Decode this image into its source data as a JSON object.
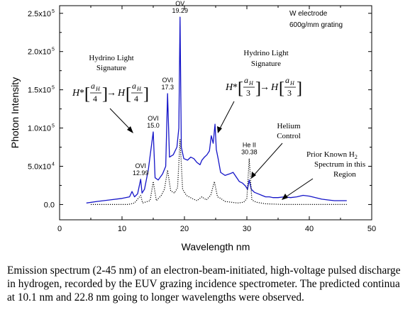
{
  "chart_data": {
    "type": "line",
    "xlabel": "Wavelength nm",
    "ylabel": "Photon Intensity",
    "xlim": [
      0,
      50
    ],
    "ylim": [
      -0.2,
      2.6
    ],
    "x_ticks": [
      "0",
      "10",
      "20",
      "30",
      "40",
      "50"
    ],
    "y_ticks": [
      "0.0",
      "5.0x10",
      "1.0x10",
      "1.5x10",
      "2.0x10",
      "2.5x10"
    ],
    "y_tick_exponents": [
      "",
      "4",
      "5",
      "5",
      "5",
      "5"
    ],
    "y_tick_values": [
      0.0,
      0.5,
      1.0,
      1.5,
      2.0,
      2.5
    ],
    "legend_note": {
      "line1": "W electrode",
      "line2": "600g/mm grating"
    },
    "series": [
      {
        "color": "#1414c8",
        "style": "solid",
        "x": [
          4.3,
          6,
          8,
          10,
          11.2,
          11.6,
          12,
          12.5,
          12.99,
          13.2,
          13.6,
          14.2,
          15.0,
          15.3,
          15.8,
          16.5,
          17.0,
          17.3,
          17.6,
          18.2,
          18.8,
          19.1,
          19.29,
          19.5,
          19.9,
          20.5,
          21.0,
          21.5,
          22.0,
          22.5,
          22.8,
          23.2,
          23.6,
          24.0,
          24.3,
          24.6,
          24.9,
          25.1,
          25.4,
          25.8,
          26.5,
          27.2,
          27.8,
          28.3,
          28.8,
          29.3,
          29.8,
          30.1,
          30.38,
          30.7,
          31.2,
          31.8,
          32.4,
          33.0,
          33.6,
          34.2,
          35.0,
          36.0,
          37.0,
          38.0,
          39.0,
          40.0,
          41.0,
          42.0,
          43.0,
          44.0,
          45.0,
          46.0
        ],
        "y": [
          0.02,
          0.04,
          0.06,
          0.08,
          0.1,
          0.17,
          0.1,
          0.14,
          0.33,
          0.15,
          0.2,
          0.45,
          0.95,
          0.35,
          0.32,
          0.4,
          0.5,
          1.45,
          0.62,
          0.65,
          0.75,
          1.0,
          2.45,
          0.75,
          0.6,
          0.58,
          0.62,
          0.6,
          0.55,
          0.52,
          0.58,
          0.62,
          0.65,
          0.7,
          0.9,
          0.8,
          1.05,
          0.72,
          0.6,
          0.42,
          0.38,
          0.4,
          0.42,
          0.36,
          0.3,
          0.28,
          0.24,
          0.2,
          0.32,
          0.2,
          0.16,
          0.14,
          0.12,
          0.1,
          0.1,
          0.09,
          0.09,
          0.1,
          0.09,
          0.1,
          0.12,
          0.11,
          0.09,
          0.07,
          0.06,
          0.05,
          0.05,
          0.05
        ]
      },
      {
        "color": "#000000",
        "style": "dotted",
        "x": [
          5,
          11,
          12,
          12.99,
          13.3,
          14.5,
          15.0,
          15.5,
          16.3,
          16.8,
          17.3,
          17.8,
          18.4,
          18.9,
          19.29,
          19.7,
          20.3,
          21.2,
          22.0,
          22.8,
          23.5,
          24.2,
          24.8,
          25.3,
          25.8,
          26.5,
          27.5,
          28.5,
          29.5,
          30.0,
          30.38,
          30.8,
          31.5,
          33,
          36,
          40,
          46
        ],
        "y": [
          0.0,
          0.0,
          0.02,
          0.12,
          0.02,
          0.05,
          0.3,
          0.05,
          0.12,
          0.2,
          0.45,
          0.18,
          0.15,
          0.22,
          0.85,
          0.2,
          0.12,
          0.08,
          0.05,
          0.1,
          0.06,
          0.12,
          0.3,
          0.1,
          0.08,
          0.04,
          0.03,
          0.02,
          0.03,
          0.08,
          0.6,
          0.06,
          0.03,
          0.01,
          0.0,
          0.0,
          0.0
        ]
      }
    ],
    "peak_labels": [
      {
        "name": "OVI",
        "value": "12.99",
        "x": 12.99,
        "y": 0.33
      },
      {
        "name": "OVI",
        "value": "15.0",
        "x": 15.0,
        "y": 0.95
      },
      {
        "name": "OVI",
        "value": "17.3",
        "x": 17.3,
        "y": 1.45
      },
      {
        "name": "OV",
        "value": "19.29",
        "x": 19.29,
        "y": 2.45
      },
      {
        "name": "He II",
        "value": "30.38",
        "x": 30.38,
        "y": 0.6
      }
    ],
    "annotations": {
      "hydrino_left": {
        "title1": "Hydrino Light",
        "title2": "Signature",
        "formula": "H*[aH/4]→H[aH/4]",
        "f_H": "H",
        "f_star": "*",
        "f_a": "a",
        "f_sub": "H",
        "f_den": "4",
        "f_arrow": "→"
      },
      "hydrino_right": {
        "title1": "Hydrino Light",
        "title2": "Signature",
        "formula": "H*[aH/3]→H[aH/3]",
        "f_H": "H",
        "f_star": "*",
        "f_a": "a",
        "f_sub": "H",
        "f_den": "3",
        "f_arrow": "→"
      },
      "helium": {
        "line1": "Helium",
        "line2": "Control"
      },
      "prior_h2": {
        "line1": "Prior Known H",
        "line1_sub": "2",
        "line2": "Spectrum  in this",
        "line3": "Region"
      }
    }
  },
  "caption": "Emission spectrum (2-45 nm) of an electron-beam-initiated, high-voltage pulsed discharge in hydrogen, recorded by the EUV grazing incidence spectrometer. The predicted continua at 10.1 nm and 22.8 nm going to longer wavelengths were observed."
}
